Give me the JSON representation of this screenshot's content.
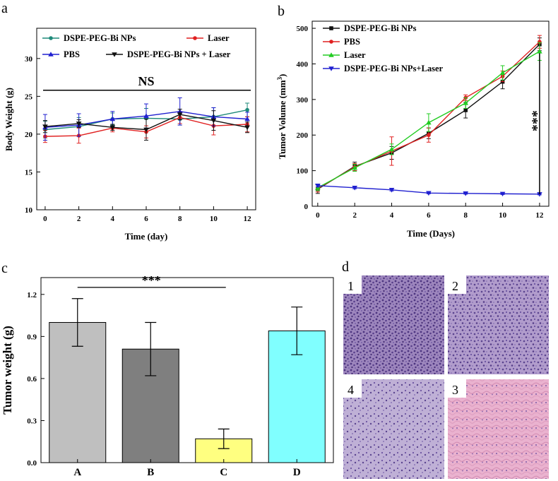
{
  "panel_labels": {
    "a": "a",
    "b": "b",
    "c": "c",
    "d": "d"
  },
  "chart_data": [
    {
      "id": "a",
      "type": "line",
      "xlabel": "Time (day)",
      "ylabel": "Body Weight (g)",
      "xlim": [
        -0.5,
        12.5
      ],
      "ylim": [
        10,
        34
      ],
      "xticks": [
        0,
        2,
        4,
        6,
        8,
        10,
        12
      ],
      "yticks": [
        10,
        15,
        20,
        25,
        30
      ],
      "annotation": "NS",
      "annotation_y": 25.8,
      "x": [
        0,
        2,
        4,
        6,
        8,
        10,
        12
      ],
      "series": [
        {
          "name": "DSPE-PEG-Bi NPs",
          "color": "#1f8a7a",
          "marker": "circle",
          "values": [
            20.6,
            21.0,
            22.0,
            22.1,
            22.0,
            22.3,
            23.2
          ],
          "errors": [
            1.1,
            1.2,
            0.8,
            1.3,
            0.8,
            1.2,
            0.9
          ]
        },
        {
          "name": "Laser",
          "color": "#e02020",
          "marker": "circle",
          "values": [
            19.7,
            19.8,
            20.8,
            20.3,
            22.2,
            21.1,
            21.3
          ],
          "errors": [
            0.8,
            1.0,
            0.5,
            0.8,
            0.8,
            1.2,
            1.0
          ]
        },
        {
          "name": "PBS",
          "color": "#2020d0",
          "marker": "triangle-up",
          "values": [
            20.9,
            21.2,
            22.0,
            22.4,
            23.0,
            22.3,
            22.0
          ],
          "errors": [
            1.7,
            1.5,
            1.0,
            1.6,
            1.8,
            1.2,
            0.9
          ]
        },
        {
          "name": "DSPE-PEG-Bi NPs + Laser",
          "color": "#111111",
          "marker": "triangle-down",
          "values": [
            21.0,
            21.4,
            20.9,
            20.6,
            22.6,
            21.8,
            20.9
          ],
          "errors": [
            0.8,
            0.5,
            0.4,
            1.4,
            0.7,
            1.3,
            0.7
          ]
        }
      ]
    },
    {
      "id": "b",
      "type": "line",
      "xlabel": "Time (Days)",
      "ylabel": "Tumor Volume (mm",
      "ylabel_sup": "3",
      "ylabel_close": ")",
      "xlim": [
        -0.3,
        12.5
      ],
      "ylim": [
        0,
        520
      ],
      "xticks": [
        0,
        2,
        4,
        6,
        8,
        10,
        12
      ],
      "yticks": [
        0,
        100,
        200,
        300,
        400,
        500
      ],
      "annotation": "***",
      "x": [
        0,
        2,
        4,
        6,
        8,
        10,
        12
      ],
      "series": [
        {
          "name": "DSPE-PEG-Bi NPs",
          "color": "#111111",
          "marker": "square",
          "values": [
            48,
            112,
            150,
            205,
            270,
            350,
            455
          ],
          "errors": [
            12,
            12,
            18,
            15,
            22,
            20,
            18
          ]
        },
        {
          "name": "PBS",
          "color": "#e02020",
          "marker": "circle",
          "values": [
            50,
            110,
            155,
            200,
            305,
            365,
            462
          ],
          "errors": [
            10,
            10,
            40,
            20,
            8,
            15,
            18
          ]
        },
        {
          "name": "Laser",
          "color": "#22cc22",
          "marker": "triangle-up",
          "values": [
            52,
            108,
            160,
            235,
            290,
            375,
            435
          ],
          "errors": [
            8,
            10,
            15,
            25,
            15,
            20,
            25
          ]
        },
        {
          "name": "DSPE-PEG-Bi NPs+Laser",
          "color": "#2020d0",
          "marker": "triangle-down",
          "values": [
            58,
            52,
            46,
            37,
            36,
            35,
            34
          ],
          "errors": [
            3,
            3,
            3,
            2,
            2,
            2,
            2
          ]
        }
      ]
    },
    {
      "id": "c",
      "type": "bar",
      "ylabel": "Tumor weight (g)",
      "ylim": [
        0,
        1.32
      ],
      "yticks": [
        0.0,
        0.3,
        0.6,
        0.9,
        1.2
      ],
      "ytick_labels": [
        "0.0",
        "0.3",
        "0.6",
        "0.9",
        "1.2"
      ],
      "categories": [
        "A",
        "B",
        "C",
        "D"
      ],
      "values": [
        1.0,
        0.81,
        0.17,
        0.94
      ],
      "errors": [
        0.17,
        0.19,
        0.07,
        0.17
      ],
      "colors": [
        "#bfbfbf",
        "#7f7f7f",
        "#ffff80",
        "#80ffff"
      ],
      "annotation": "***",
      "annotation_y": 1.25
    }
  ],
  "histology": {
    "labels": [
      "1",
      "2",
      "4",
      "3"
    ],
    "colors": [
      "#8c6fb0",
      "#9a7fb8",
      "#a48ec0",
      "#e4a6c6"
    ]
  }
}
